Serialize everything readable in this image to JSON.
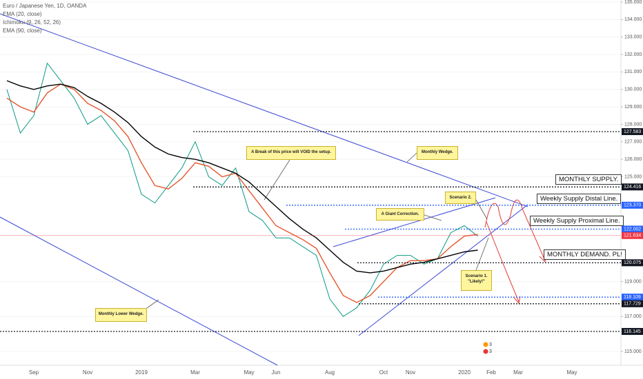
{
  "legend": [
    "Euro / Japanese Yen, 1D, OANDA",
    "EMA (20, close)",
    "Ichimoku (9, 26, 52, 26)",
    "EMA (90, close)"
  ],
  "chart_data": {
    "type": "line",
    "categories": [
      null,
      null,
      "Sep",
      null,
      null,
      null,
      "Nov",
      null,
      null,
      null,
      "2019",
      null,
      null,
      null,
      "Mar",
      null,
      null,
      null,
      "May",
      null,
      "Jun",
      null,
      null,
      null,
      "Aug",
      null,
      null,
      null,
      "Oct",
      null,
      "Nov",
      null,
      null,
      null,
      "2020",
      null,
      "Feb",
      null,
      "Mar",
      null,
      null,
      null,
      "May",
      null,
      null,
      null
    ],
    "series": [
      {
        "name": "Close",
        "color": "#089981",
        "values": [
          130.0,
          127.5,
          128.5,
          131.5,
          130.5,
          129.5,
          128.0,
          128.5,
          127.5,
          126.5,
          124.0,
          123.5,
          124.5,
          125.5,
          127.0,
          125.0,
          124.5,
          125.5,
          123.0,
          122.5,
          121.5,
          121.5,
          121.0,
          120.5,
          118.0,
          117.0,
          117.5,
          118.5,
          120.0,
          120.5,
          120.5,
          120.0,
          120.3,
          121.8,
          122.2,
          121.6,
          null,
          null,
          null,
          null,
          null,
          null,
          null,
          null,
          null,
          null
        ]
      },
      {
        "name": "EMA (20, close)",
        "color": "#e4572e",
        "values": [
          129.5,
          129.0,
          128.7,
          129.8,
          130.3,
          130.0,
          129.2,
          128.8,
          128.2,
          127.3,
          125.8,
          124.5,
          124.3,
          124.9,
          125.8,
          125.6,
          125.0,
          125.2,
          124.2,
          123.2,
          122.2,
          121.8,
          121.4,
          120.9,
          119.5,
          118.2,
          117.8,
          118.2,
          119.0,
          119.8,
          120.2,
          120.2,
          120.3,
          121.0,
          121.6,
          121.7,
          null,
          null,
          null,
          null,
          null,
          null,
          null,
          null,
          null,
          null
        ]
      },
      {
        "name": "EMA (90, close)",
        "color": "#000000",
        "values": [
          130.5,
          130.2,
          130.0,
          130.2,
          130.3,
          130.1,
          129.6,
          129.2,
          128.7,
          128.1,
          127.3,
          126.7,
          126.3,
          126.1,
          126.0,
          125.8,
          125.5,
          125.2,
          124.7,
          124.0,
          123.3,
          122.6,
          122.0,
          121.5,
          120.8,
          120.1,
          119.6,
          119.5,
          119.6,
          119.8,
          120.0,
          120.1,
          120.3,
          120.5,
          120.7,
          120.8,
          null,
          null,
          null,
          null,
          null,
          null,
          null,
          null,
          null,
          null
        ]
      }
    ],
    "ylim": [
      115,
      135
    ],
    "yticks": [
      {
        "value": 135,
        "label": "135.000"
      },
      {
        "value": 134,
        "label": "134.000"
      },
      {
        "value": 133,
        "label": "133.000"
      },
      {
        "value": 132,
        "label": "132.000"
      },
      {
        "value": 131,
        "label": "131.000"
      },
      {
        "value": 130,
        "label": "130.000"
      },
      {
        "value": 129,
        "label": "129.000"
      },
      {
        "value": 128,
        "label": "128.000"
      },
      {
        "value": 127,
        "label": "127.000"
      },
      {
        "value": 126,
        "label": "126.000"
      },
      {
        "value": 125,
        "label": "125.000"
      },
      {
        "value": 119,
        "label": "119.000"
      },
      {
        "value": 117,
        "label": "117.000"
      },
      {
        "value": 115,
        "label": "115.000"
      }
    ],
    "grid": true,
    "levels": [
      {
        "price": 127.583,
        "color": "#131722",
        "line": "dotted"
      },
      {
        "price": 124.416,
        "color": "#131722",
        "line": "dotted"
      },
      {
        "price": {
          "value": 123.37,
          "label": "123.370"
        },
        "color": "#2962ff",
        "line": "dotted"
      },
      {
        "price": 122.002,
        "color": "#2962ff",
        "line": "dotted"
      },
      {
        "price": 121.634,
        "color": "#f23645",
        "line": "solid"
      },
      {
        "price": 120.075,
        "color": "#131722",
        "line": "dotted"
      },
      {
        "price": 118.109,
        "color": "#2962ff",
        "line": "dotted"
      },
      {
        "price": 117.729,
        "color": "#131722",
        "line": "dotted"
      },
      {
        "price": 116.145,
        "color": "#131722",
        "line": "dotted"
      }
    ],
    "annotations": [
      "Monthly Wedge.",
      "A Break of this price will VOID the setup.",
      "Scenario 2.",
      "A Giant Correction.",
      "Scenario 1. \"Likely!\"",
      "Monthly Lower Wedge."
    ],
    "zones": [
      "MONTHLY SUPPLY.",
      "Weekly Supply Distal Line.",
      "Weekly Supply Proximal Line.",
      "MONTHLY DEMAND. PL!"
    ],
    "event_badges": [
      "3",
      "3"
    ]
  }
}
